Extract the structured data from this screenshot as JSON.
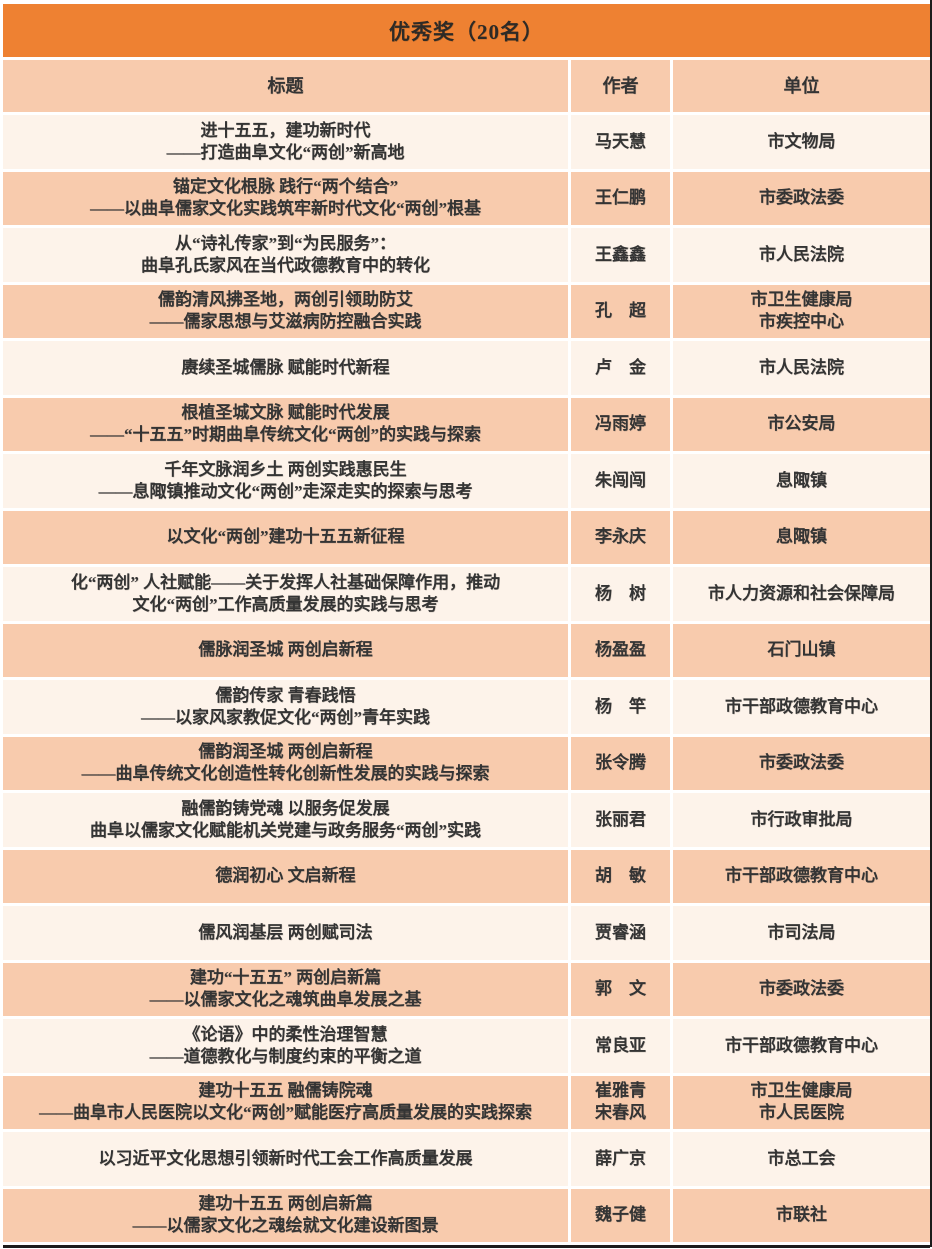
{
  "table": {
    "title": "优秀奖（20名）",
    "columns": {
      "title": "标题",
      "author": "作者",
      "unit": "单位"
    },
    "rows": [
      {
        "title": "进十五五，建功新时代\n——打造曲阜文化“两创”新高地",
        "author": "马天慧",
        "unit": "市文物局"
      },
      {
        "title": "锚定文化根脉 践行“两个结合”\n——以曲阜儒家文化实践筑牢新时代文化“两创”根基",
        "author": "王仁鹏",
        "unit": "市委政法委"
      },
      {
        "title": "从“诗礼传家”到“为民服务”：\n曲阜孔氏家风在当代政德教育中的转化",
        "author": "王鑫鑫",
        "unit": "市人民法院"
      },
      {
        "title": "儒韵清风拂圣地，两创引领助防艾\n——儒家思想与艾滋病防控融合实践",
        "author": "孔　超",
        "unit": "市卫生健康局\n市疾控中心"
      },
      {
        "title": "赓续圣城儒脉 赋能时代新程",
        "author": "卢　金",
        "unit": "市人民法院"
      },
      {
        "title": "根植圣城文脉 赋能时代发展\n——“十五五”时期曲阜传统文化“两创”的实践与探索",
        "author": "冯雨婷",
        "unit": "市公安局"
      },
      {
        "title": "千年文脉润乡土 两创实践惠民生\n——息陬镇推动文化“两创”走深走实的探索与思考",
        "author": "朱闯闯",
        "unit": "息陬镇"
      },
      {
        "title": "以文化“两创”建功十五五新征程",
        "author": "李永庆",
        "unit": "息陬镇"
      },
      {
        "title": "化“两创” 人社赋能——关于发挥人社基础保障作用，推动\n文化“两创”工作高质量发展的实践与思考",
        "author": "杨　树",
        "unit": "市人力资源和社会保障局"
      },
      {
        "title": "儒脉润圣城 两创启新程",
        "author": "杨盈盈",
        "unit": "石门山镇"
      },
      {
        "title": "儒韵传家 青春践悟\n——以家风家教促文化“两创”青年实践",
        "author": "杨　竿",
        "unit": "市干部政德教育中心"
      },
      {
        "title": "儒韵润圣城 两创启新程\n——曲阜传统文化创造性转化创新性发展的实践与探索",
        "author": "张令腾",
        "unit": "市委政法委"
      },
      {
        "title": "融儒韵铸党魂 以服务促发展\n曲阜以儒家文化赋能机关党建与政务服务“两创”实践",
        "author": "张丽君",
        "unit": "市行政审批局"
      },
      {
        "title": "德润初心  文启新程",
        "author": "胡　敏",
        "unit": "市干部政德教育中心"
      },
      {
        "title": "儒风润基层 两创赋司法",
        "author": "贾睿涵",
        "unit": "市司法局"
      },
      {
        "title": "建功“十五五” 两创启新篇\n——以儒家文化之魂筑曲阜发展之基",
        "author": "郭　文",
        "unit": "市委政法委"
      },
      {
        "title": "《论语》中的柔性治理智慧\n——道德教化与制度约束的平衡之道",
        "author": "常良亚",
        "unit": "市干部政德教育中心"
      },
      {
        "title": "建功十五五 融儒铸院魂\n——曲阜市人民医院以文化“两创”赋能医疗高质量发展的实践探索",
        "author": "崔雅青\n宋春风",
        "unit": "市卫生健康局\n市人民医院"
      },
      {
        "title": "以习近平文化思想引领新时代工会工作高质量发展",
        "author": "薛广京",
        "unit": "市总工会"
      },
      {
        "title": "建功十五五 两创启新篇\n——以儒家文化之魂绘就文化建设新图景",
        "author": "魏子健",
        "unit": "市联社"
      }
    ]
  },
  "colors": {
    "accent_orange": "#EE8132",
    "row_peach": "#F8CBAD",
    "row_cream": "#FDF3EA",
    "text_ink": "#343434"
  }
}
